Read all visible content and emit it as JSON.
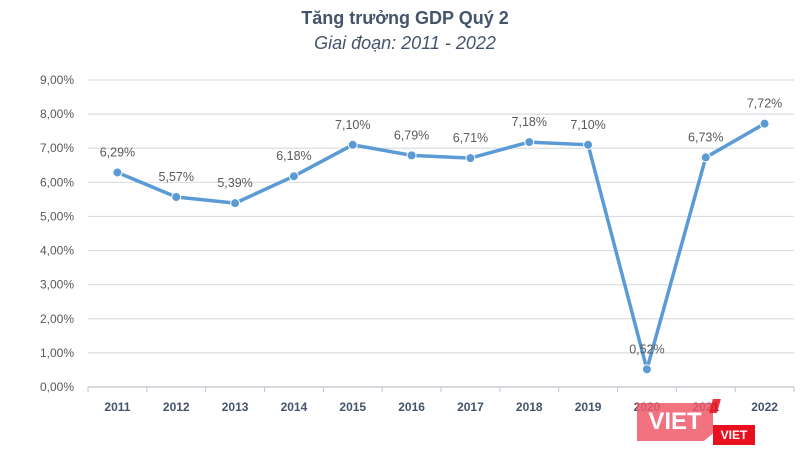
{
  "chart_data": {
    "type": "line",
    "title": "Tăng trưởng GDP Quý 2",
    "subtitle": "Giai đoạn: 2011 - 2022",
    "xlabel": "",
    "ylabel": "",
    "categories": [
      "2011",
      "2012",
      "2013",
      "2014",
      "2015",
      "2016",
      "2017",
      "2018",
      "2019",
      "2020",
      "2021",
      "2022"
    ],
    "series": [
      {
        "name": "Tăng trưởng GDP Quý 2",
        "values": [
          6.29,
          5.57,
          5.39,
          6.18,
          7.1,
          6.79,
          6.71,
          7.18,
          7.1,
          0.52,
          6.73,
          7.72
        ],
        "labels": [
          "6,29%",
          "5,57%",
          "5,39%",
          "6,18%",
          "7,10%",
          "6,79%",
          "6,71%",
          "7,18%",
          "7,10%",
          "0,52%",
          "6,73%",
          "7,72%"
        ],
        "color": "#5b9bd5"
      }
    ],
    "ylim": [
      0,
      9
    ],
    "yticks": [
      0,
      1,
      2,
      3,
      4,
      5,
      6,
      7,
      8,
      9
    ],
    "ytick_labels": [
      "0,00%",
      "1,00%",
      "2,00%",
      "3,00%",
      "4,00%",
      "5,00%",
      "6,00%",
      "7,00%",
      "8,00%",
      "9,00%"
    ],
    "grid": true,
    "legend": "none",
    "gridline_color": "#d9dde3",
    "axis_color": "#bfc5cc"
  },
  "watermark": {
    "big_text": "VIET",
    "small_text": "VIET"
  }
}
